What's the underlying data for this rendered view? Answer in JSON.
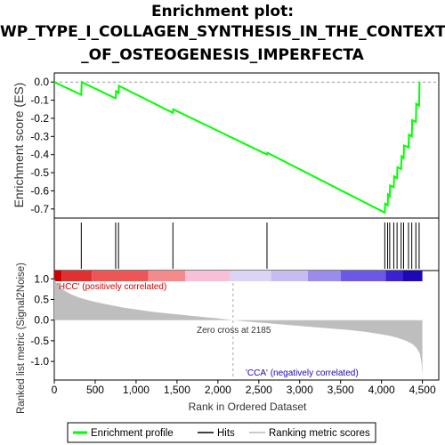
{
  "title_lines": [
    "Enrichment plot:",
    "WP_TYPE_I_COLLAGEN_SYNTHESIS_IN_THE_CONTEXT",
    "_OF_OSTEOGENESIS_IMPERFECTA"
  ],
  "chart_data": [
    {
      "type": "line",
      "panel": "enrichment-score",
      "ylabel": "Enrichment score (ES)",
      "ylim": [
        -0.75,
        0.05
      ],
      "xlim": [
        0,
        4700
      ],
      "yticks": [
        0.0,
        -0.1,
        -0.2,
        -0.3,
        -0.4,
        -0.5,
        -0.6,
        -0.7
      ],
      "ytick_labels": [
        "0.0",
        "-0.1",
        "-0.2",
        "-0.3",
        "-0.4",
        "-0.5",
        "-0.6",
        "-0.7"
      ],
      "grid": "horizontal dashed at zero",
      "color": "#00ff00",
      "series": [
        {
          "x": [
            0,
            330,
            335,
            750,
            755,
            785,
            790,
            1450,
            1455,
            2600,
            2605,
            4040,
            4045,
            4075,
            4080,
            4100,
            4105,
            4150,
            4155,
            4190,
            4195,
            4240,
            4245,
            4270,
            4275,
            4330,
            4335,
            4370,
            4375,
            4420,
            4425,
            4460,
            4465
          ],
          "y": [
            0.0,
            -0.07,
            0.0,
            -0.09,
            -0.05,
            -0.06,
            -0.02,
            -0.17,
            -0.15,
            -0.4,
            -0.39,
            -0.72,
            -0.67,
            -0.68,
            -0.62,
            -0.63,
            -0.57,
            -0.58,
            -0.52,
            -0.53,
            -0.47,
            -0.48,
            -0.41,
            -0.42,
            -0.35,
            -0.36,
            -0.29,
            -0.3,
            -0.21,
            -0.22,
            -0.12,
            -0.13,
            0.0
          ]
        }
      ]
    },
    {
      "type": "scatter",
      "panel": "hits",
      "hits_x": [
        330,
        750,
        785,
        1450,
        2600,
        4040,
        4075,
        4100,
        4150,
        4190,
        4240,
        4270,
        4330,
        4370,
        4420,
        4460
      ]
    },
    {
      "type": "heatmap",
      "panel": "ranked-list-color-bar",
      "segments": [
        {
          "to": 90,
          "color": "#cc0000"
        },
        {
          "to": 460,
          "color": "#e03030"
        },
        {
          "to": 1150,
          "color": "#ee5555"
        },
        {
          "to": 1600,
          "color": "#f48a8a"
        },
        {
          "to": 2150,
          "color": "#f8c0d8"
        },
        {
          "to": 2650,
          "color": "#dcd4f4"
        },
        {
          "to": 3100,
          "color": "#c6bcf0"
        },
        {
          "to": 3500,
          "color": "#9a8cec"
        },
        {
          "to": 4050,
          "color": "#6b58e6"
        },
        {
          "to": 4260,
          "color": "#3a22d2"
        },
        {
          "to": 4500,
          "color": "#1c08b4"
        }
      ]
    },
    {
      "type": "area",
      "panel": "ranked-list-metric",
      "xlabel": "Rank in Ordered Dataset",
      "ylabel": "Ranked list metric (Signal2Noise)",
      "ylim": [
        -1.45,
        1.2
      ],
      "xlim": [
        0,
        4700
      ],
      "yticks": [
        1.0,
        0.5,
        0.0,
        -0.5,
        -1.0
      ],
      "ytick_labels": [
        "1.0",
        "0.5",
        "0.0",
        "-0.5",
        "-1.0"
      ],
      "xticks": [
        0,
        500,
        1000,
        1500,
        2000,
        2500,
        3000,
        3500,
        4000,
        4500
      ],
      "xtick_labels": [
        "0",
        "500",
        "1,000",
        "1,500",
        "2,000",
        "2,500",
        "3,000",
        "3,500",
        "4,000",
        "4,500"
      ],
      "color": "#bebebe",
      "series": [
        {
          "x": [
            0,
            20,
            60,
            120,
            200,
            300,
            420,
            550,
            700,
            850,
            1000,
            1200,
            1400,
            1600,
            1800,
            2000,
            2185,
            2400,
            2700,
            3000,
            3300,
            3600,
            3800,
            3950,
            4100,
            4200,
            4300,
            4380,
            4430,
            4470,
            4490,
            4500
          ],
          "y": [
            1.0,
            0.92,
            0.82,
            0.72,
            0.63,
            0.55,
            0.48,
            0.42,
            0.36,
            0.3,
            0.26,
            0.2,
            0.16,
            0.12,
            0.08,
            0.04,
            0.0,
            -0.04,
            -0.09,
            -0.14,
            -0.19,
            -0.24,
            -0.28,
            -0.33,
            -0.38,
            -0.43,
            -0.5,
            -0.58,
            -0.68,
            -0.82,
            -1.05,
            -1.35
          ]
        }
      ],
      "annotations": {
        "zero_cross_x": 2185,
        "zero_cross_label": "Zero cross at 2185",
        "positive_label": "'HCC' (positively correlated)",
        "negative_label": "'CCA' (negatively correlated)"
      }
    }
  ],
  "legend": {
    "items": [
      "Enrichment profile",
      "Hits",
      "Ranking metric scores"
    ],
    "colors": [
      "#00ff00",
      "#000000",
      "#cccccc"
    ]
  }
}
